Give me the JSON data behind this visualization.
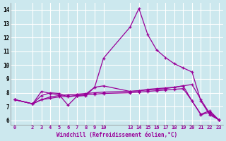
{
  "xlabel": "Windchill (Refroidissement éolien,°C)",
  "bg_color": "#cce8ee",
  "grid_color": "#ffffff",
  "line_color": "#990099",
  "x_ticks_labels": [
    "0",
    "2",
    "3",
    "4",
    "5",
    "6",
    "7",
    "8",
    "9",
    "10",
    "13",
    "14",
    "15",
    "16",
    "17",
    "18",
    "19",
    "20",
    "21",
    "22",
    "23"
  ],
  "x_ticks_pos": [
    0,
    2,
    3,
    4,
    5,
    6,
    7,
    8,
    9,
    10,
    13,
    14,
    15,
    16,
    17,
    18,
    19,
    20,
    21,
    22,
    23
  ],
  "ylim": [
    5.7,
    14.5
  ],
  "xlim": [
    -0.5,
    23.5
  ],
  "yticks": [
    6,
    7,
    8,
    9,
    10,
    11,
    12,
    13,
    14
  ],
  "lines": [
    {
      "x": [
        0,
        2,
        3,
        4,
        5,
        6,
        7,
        8,
        9,
        10,
        13,
        14,
        15,
        16,
        17,
        18,
        19,
        20,
        21,
        22,
        23
      ],
      "y": [
        7.5,
        7.2,
        7.5,
        7.6,
        7.7,
        7.75,
        7.8,
        7.85,
        7.9,
        7.95,
        8.0,
        8.05,
        8.1,
        8.15,
        8.2,
        8.25,
        8.3,
        7.4,
        6.4,
        6.6,
        6.05
      ]
    },
    {
      "x": [
        0,
        2,
        3,
        4,
        5,
        6,
        7,
        8,
        9,
        10,
        13,
        14,
        15,
        16,
        17,
        18,
        19,
        20,
        21,
        22,
        23
      ],
      "y": [
        7.5,
        7.2,
        7.8,
        8.0,
        7.95,
        7.7,
        7.8,
        7.9,
        8.4,
        10.5,
        12.75,
        14.1,
        12.2,
        11.1,
        10.55,
        10.1,
        9.8,
        9.5,
        7.4,
        6.4,
        6.05
      ]
    },
    {
      "x": [
        0,
        2,
        3,
        4,
        5,
        6,
        7,
        8,
        9,
        10,
        13,
        14,
        15,
        16,
        17,
        18,
        19,
        20,
        21,
        22,
        23
      ],
      "y": [
        7.5,
        7.2,
        8.1,
        7.95,
        7.85,
        7.1,
        7.75,
        7.8,
        8.4,
        8.5,
        8.1,
        8.15,
        8.25,
        8.3,
        8.35,
        8.4,
        8.5,
        7.4,
        6.45,
        6.7,
        6.05
      ]
    },
    {
      "x": [
        0,
        2,
        3,
        4,
        5,
        6,
        7,
        8,
        9,
        10,
        13,
        14,
        15,
        16,
        17,
        18,
        19,
        20,
        21,
        22,
        23
      ],
      "y": [
        7.5,
        7.2,
        7.5,
        7.7,
        7.8,
        7.85,
        7.9,
        7.95,
        8.0,
        8.05,
        8.1,
        8.15,
        8.2,
        8.25,
        8.3,
        8.4,
        8.5,
        8.6,
        7.5,
        6.5,
        6.05
      ]
    }
  ]
}
